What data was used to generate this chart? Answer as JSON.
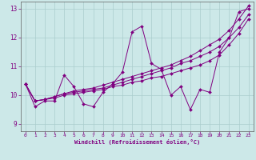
{
  "xlabel": "Windchill (Refroidissement éolien,°C)",
  "bg_color": "#cce8e8",
  "line_color": "#800080",
  "grid_color": "#aacccc",
  "xlim": [
    -0.5,
    23.5
  ],
  "ylim": [
    8.75,
    13.25
  ],
  "yticks": [
    9,
    10,
    11,
    12,
    13
  ],
  "xticks": [
    0,
    1,
    2,
    3,
    4,
    5,
    6,
    7,
    8,
    9,
    10,
    11,
    12,
    13,
    14,
    15,
    16,
    17,
    18,
    19,
    20,
    21,
    22,
    23
  ],
  "series": [
    [
      10.4,
      9.6,
      9.8,
      9.8,
      10.7,
      10.3,
      9.7,
      9.6,
      10.1,
      10.4,
      10.8,
      12.2,
      12.4,
      11.1,
      10.9,
      10.0,
      10.3,
      9.5,
      10.2,
      10.1,
      11.5,
      12.0,
      12.9,
      13.0
    ],
    [
      10.4,
      9.8,
      9.85,
      9.9,
      10.0,
      10.05,
      10.1,
      10.15,
      10.2,
      10.3,
      10.35,
      10.45,
      10.5,
      10.6,
      10.65,
      10.75,
      10.85,
      10.95,
      11.05,
      11.2,
      11.4,
      11.75,
      12.15,
      12.65
    ],
    [
      10.4,
      9.8,
      9.85,
      9.95,
      10.05,
      10.1,
      10.15,
      10.2,
      10.25,
      10.35,
      10.45,
      10.55,
      10.65,
      10.75,
      10.85,
      10.95,
      11.1,
      11.2,
      11.35,
      11.5,
      11.7,
      12.0,
      12.35,
      12.8
    ],
    [
      10.4,
      9.8,
      9.85,
      9.95,
      10.05,
      10.15,
      10.2,
      10.25,
      10.35,
      10.45,
      10.55,
      10.65,
      10.75,
      10.85,
      10.95,
      11.05,
      11.2,
      11.35,
      11.55,
      11.75,
      11.95,
      12.25,
      12.65,
      13.1
    ]
  ],
  "spine_color": "#606060"
}
